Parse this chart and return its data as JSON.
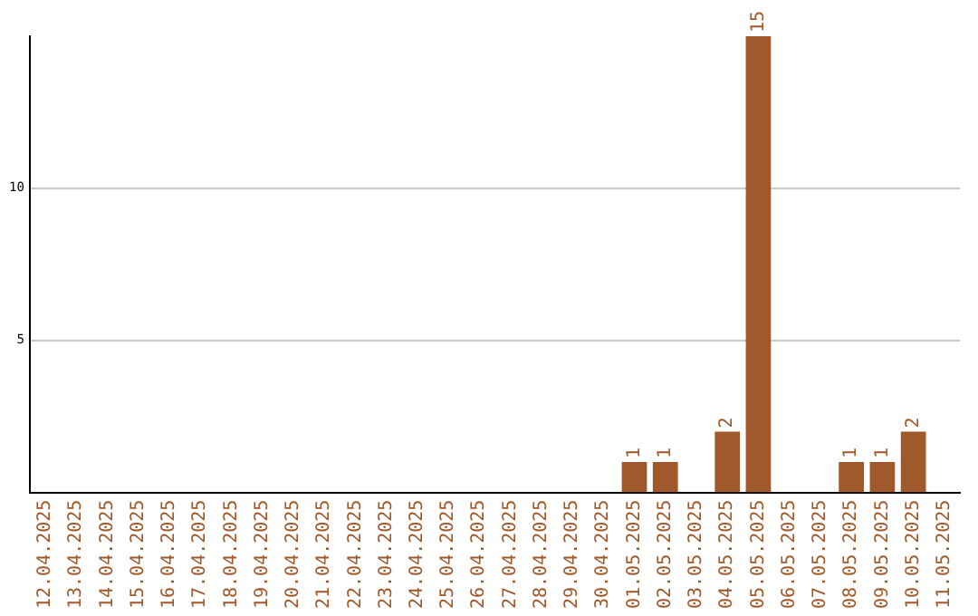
{
  "chart_data": {
    "type": "bar",
    "categories": [
      "12.04.2025",
      "13.04.2025",
      "14.04.2025",
      "15.04.2025",
      "16.04.2025",
      "17.04.2025",
      "18.04.2025",
      "19.04.2025",
      "20.04.2025",
      "21.04.2025",
      "22.04.2025",
      "23.04.2025",
      "24.04.2025",
      "25.04.2025",
      "26.04.2025",
      "27.04.2025",
      "28.04.2025",
      "29.04.2025",
      "30.04.2025",
      "01.05.2025",
      "02.05.2025",
      "03.05.2025",
      "04.05.2025",
      "05.05.2025",
      "06.05.2025",
      "07.05.2025",
      "08.05.2025",
      "09.05.2025",
      "10.05.2025",
      "11.05.2025"
    ],
    "values": [
      0,
      0,
      0,
      0,
      0,
      0,
      0,
      0,
      0,
      0,
      0,
      0,
      0,
      0,
      0,
      0,
      0,
      0,
      0,
      1,
      1,
      0,
      2,
      15,
      0,
      0,
      1,
      1,
      2,
      0
    ],
    "value_labels": [
      null,
      null,
      null,
      null,
      null,
      null,
      null,
      null,
      null,
      null,
      null,
      null,
      null,
      null,
      null,
      null,
      null,
      null,
      null,
      "1",
      "1",
      null,
      "2",
      "15",
      null,
      null,
      "1",
      "1",
      "2",
      null
    ],
    "color": "#a0592b",
    "ylim": [
      0,
      15
    ],
    "yticks": [
      5,
      10
    ],
    "grid": "y",
    "legend": false
  }
}
